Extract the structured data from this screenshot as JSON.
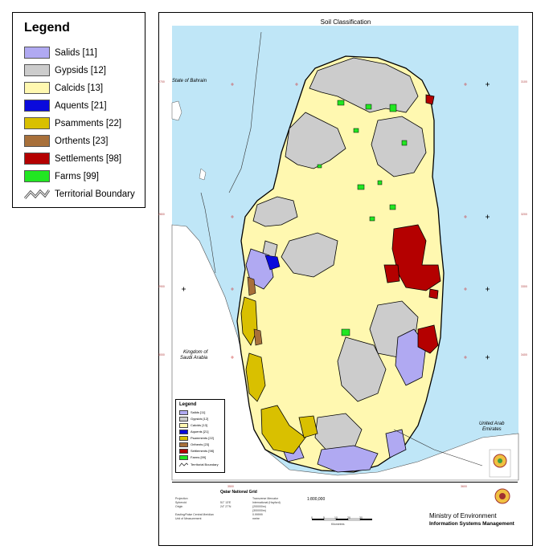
{
  "legend": {
    "title": "Legend",
    "items": [
      {
        "label": "Salids [11]",
        "color": "#b0a9f2"
      },
      {
        "label": "Gypsids [12]",
        "color": "#cccccc"
      },
      {
        "label": "Calcids [13]",
        "color": "#fff8b0"
      },
      {
        "label": "Aquents [21]",
        "color": "#0a0adc"
      },
      {
        "label": "Psamments [22]",
        "color": "#d9c000"
      },
      {
        "label": "Orthents [23]",
        "color": "#a8703a"
      },
      {
        "label": "Settlements [98]",
        "color": "#b40000"
      },
      {
        "label": "Farms [99]",
        "color": "#22e622"
      },
      {
        "label": "Territorial Boundary",
        "color": "#666666"
      }
    ]
  },
  "map": {
    "title": "Soil Classification",
    "sea_color": "#bfe6f7",
    "land_color": "#ffffff",
    "places": {
      "bahrain": "State of Bahrain",
      "saudi_1": "Kingdom of",
      "saudi_2": "Saudi Arabia",
      "uae_1": "United Arab",
      "uae_2": "Emirates"
    },
    "tick_labels": [
      "2700",
      "2800",
      "2900",
      "3000",
      "3100",
      "3200",
      "3300",
      "3400",
      "3500",
      "3600"
    ]
  },
  "small_legend": {
    "title": "Legend",
    "items": [
      {
        "label": "Salids [11]",
        "color": "#b0a9f2"
      },
      {
        "label": "Gypsids [12]",
        "color": "#cccccc"
      },
      {
        "label": "Calcids [13]",
        "color": "#fff8b0"
      },
      {
        "label": "Aquents [21]",
        "color": "#0a0adc"
      },
      {
        "label": "Psamments [22]",
        "color": "#d9c000"
      },
      {
        "label": "Orthents [23]",
        "color": "#a8703a"
      },
      {
        "label": "Settlements [98]",
        "color": "#b40000"
      },
      {
        "label": "Farms [99]",
        "color": "#22e622"
      },
      {
        "label": "Territorial Boundary",
        "color": "#666666"
      }
    ]
  },
  "footer": {
    "grid_title": "Qatar National Grid",
    "left_lines": [
      "Projection",
      "Spheroid",
      "Origin",
      "",
      "Easting/False Central Meridian",
      "Unit of Measurement"
    ],
    "mid_lines": [
      "51° 13'E",
      "24° 27'N",
      "",
      "",
      "",
      ""
    ],
    "right_lines": [
      "Transverse Mercator",
      "International (Hayford)",
      "(200000m)",
      "(300000m)",
      "0.99999",
      "metre"
    ],
    "scale": "1:800,000",
    "scale_ticks": [
      "0",
      "5",
      "10",
      "20",
      "30"
    ],
    "scale_unit": "Kilometres",
    "ministry": "Ministry of Environment",
    "department": "Information Systems Management"
  }
}
